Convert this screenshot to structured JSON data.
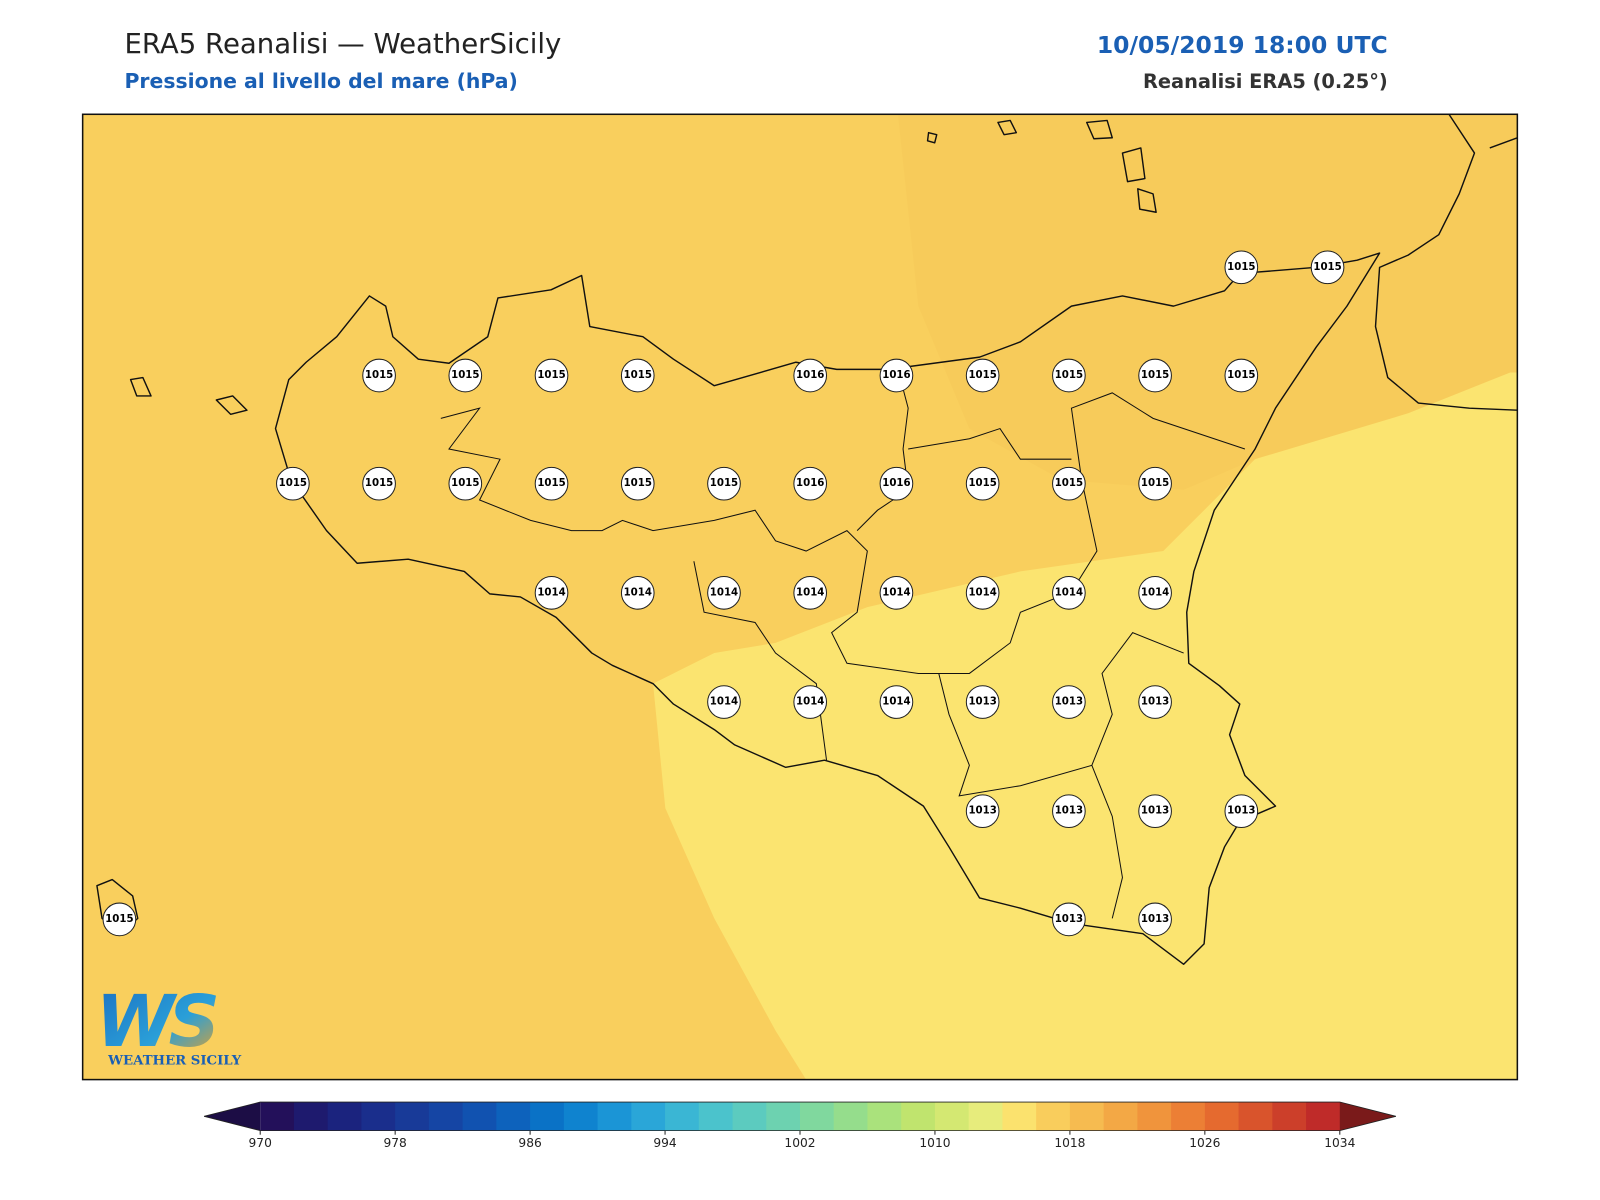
{
  "header": {
    "title": "ERA5 Reanalisi — WeatherSicily",
    "subtitle": "Pressione al livello del mare (hPa)",
    "date": "10/05/2019 18:00 UTC",
    "source": "Reanalisi ERA5 (0.25°)"
  },
  "stations": [
    {
      "value": 1015
    },
    {
      "value": 1015
    },
    {
      "value": 1015
    },
    {
      "value": 1015
    },
    {
      "value": 1015
    },
    {
      "value": 1015
    },
    {
      "value": 1016
    },
    {
      "value": 1016
    },
    {
      "value": 1015
    },
    {
      "value": 1015
    },
    {
      "value": 1015
    },
    {
      "value": 1015
    },
    {
      "value": 1015
    },
    {
      "value": 1015
    },
    {
      "value": 1015
    },
    {
      "value": 1015
    },
    {
      "value": 1015
    },
    {
      "value": 1015
    },
    {
      "value": 1016
    },
    {
      "value": 1016
    },
    {
      "value": 1015
    },
    {
      "value": 1015
    },
    {
      "value": 1015
    },
    {
      "value": 1014
    },
    {
      "value": 1014
    },
    {
      "value": 1014
    },
    {
      "value": 1014
    },
    {
      "value": 1014
    },
    {
      "value": 1014
    },
    {
      "value": 1014
    },
    {
      "value": 1014
    },
    {
      "value": 1014
    },
    {
      "value": 1014
    },
    {
      "value": 1014
    },
    {
      "value": 1013
    },
    {
      "value": 1013
    },
    {
      "value": 1013
    },
    {
      "value": 1013
    },
    {
      "value": 1013
    },
    {
      "value": 1013
    },
    {
      "value": 1013
    },
    {
      "value": 1015
    },
    {
      "value": 1013
    },
    {
      "value": 1013
    }
  ],
  "colorbar": {
    "range": [
      970,
      1034
    ],
    "ticks": [
      970,
      978,
      986,
      994,
      1002,
      1010,
      1018,
      1026,
      1034
    ],
    "colors": [
      "#23105a",
      "#1e1a6e",
      "#1b237e",
      "#1a2e8c",
      "#183a98",
      "#1545a4",
      "#1152b0",
      "#0d62bc",
      "#0a72c6",
      "#0f83cf",
      "#1b95d6",
      "#2aa6d8",
      "#3ab6d4",
      "#4bc3cc",
      "#5ccbbf",
      "#6dd2b0",
      "#80d89e",
      "#95dd8c",
      "#aae27c",
      "#c0e46e",
      "#d4e872",
      "#e7ec7c",
      "#fbe26e",
      "#f9cd5c",
      "#f6bb50",
      "#f3a845",
      "#f0943c",
      "#ec7f35",
      "#e56a2f",
      "#d9542c",
      "#cc3f2a",
      "#bf2b29"
    ],
    "under": "#1c0d45",
    "over": "#7a1a1a"
  },
  "logo": {
    "mark": "WS",
    "name": "WEATHER SICILY"
  }
}
